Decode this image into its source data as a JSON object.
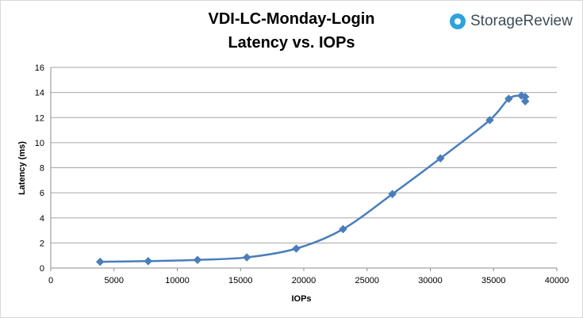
{
  "chart_data": {
    "type": "line",
    "title_line1": "VDI-LC-Monday-Login",
    "title_line2": "Latency vs. IOPs",
    "xlabel": "IOPs",
    "ylabel": "Latency (ms)",
    "xlim": [
      0,
      40000
    ],
    "ylim": [
      0,
      16
    ],
    "x_ticks": [
      0,
      5000,
      10000,
      15000,
      20000,
      25000,
      30000,
      35000,
      40000
    ],
    "y_ticks": [
      0,
      2,
      4,
      6,
      8,
      10,
      12,
      14,
      16
    ],
    "grid": "horizontal",
    "legend": "none",
    "series_color": "#4a7ebb",
    "series": [
      {
        "points": [
          {
            "x": 3900,
            "y": 0.5
          },
          {
            "x": 7700,
            "y": 0.55
          },
          {
            "x": 11600,
            "y": 0.65
          },
          {
            "x": 15500,
            "y": 0.85
          },
          {
            "x": 19400,
            "y": 1.55
          },
          {
            "x": 23100,
            "y": 3.1
          },
          {
            "x": 27000,
            "y": 5.9
          },
          {
            "x": 30800,
            "y": 8.75
          },
          {
            "x": 34700,
            "y": 11.8
          },
          {
            "x": 36200,
            "y": 13.5
          },
          {
            "x": 37200,
            "y": 13.75
          },
          {
            "x": 37500,
            "y": 13.65
          },
          {
            "x": 37500,
            "y": 13.3
          }
        ]
      }
    ]
  },
  "brand": {
    "name": "StorageReview",
    "logo_icon": "storagereview-logo-icon",
    "color": "#2ea3dc"
  }
}
